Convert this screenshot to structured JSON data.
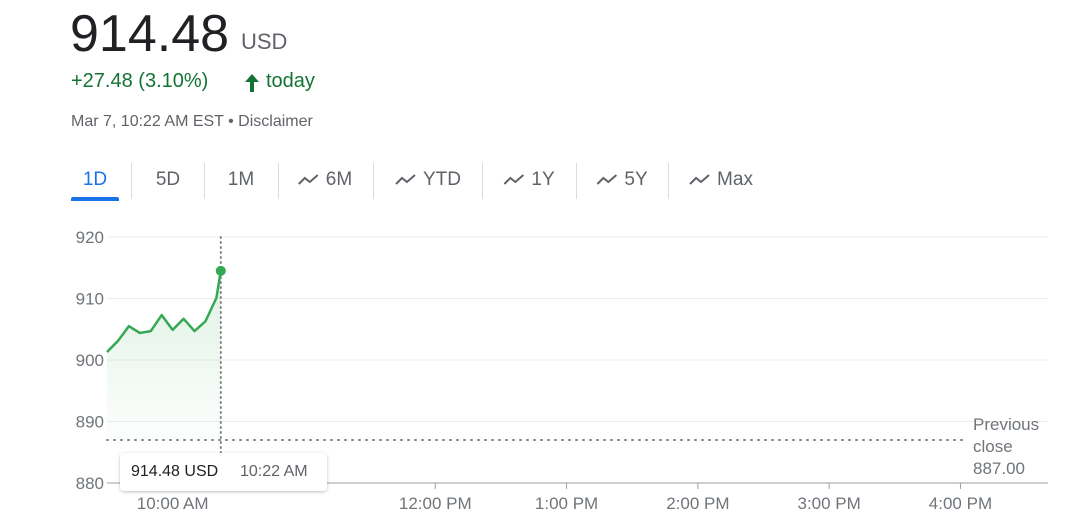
{
  "header": {
    "price": "914.48",
    "currency": "USD",
    "change": "+27.48 (3.10%)",
    "period": "today",
    "timestamp": "Mar 7, 10:22 AM EST",
    "disclaimer": "Disclaimer"
  },
  "tabs": [
    {
      "label": "1D",
      "selected": true,
      "icon": false
    },
    {
      "label": "5D",
      "selected": false,
      "icon": false
    },
    {
      "label": "1M",
      "selected": false,
      "icon": false
    },
    {
      "label": "6M",
      "selected": false,
      "icon": true
    },
    {
      "label": "YTD",
      "selected": false,
      "icon": true
    },
    {
      "label": "1Y",
      "selected": false,
      "icon": true
    },
    {
      "label": "5Y",
      "selected": false,
      "icon": true
    },
    {
      "label": "Max",
      "selected": false,
      "icon": true
    }
  ],
  "chart_data": {
    "type": "line",
    "color": "#34a853",
    "x": [
      570,
      575,
      580,
      585,
      590,
      595,
      600,
      605,
      610,
      615,
      620,
      622
    ],
    "values": [
      901.3,
      903.1,
      905.5,
      904.4,
      904.7,
      907.3,
      904.9,
      906.7,
      904.7,
      906.3,
      910.1,
      914.5
    ],
    "xlim": [
      570,
      1000
    ],
    "ylim": [
      880,
      920
    ],
    "xticks": [
      {
        "value": 600,
        "label": "10:00 AM"
      },
      {
        "value": 720,
        "label": "12:00 PM"
      },
      {
        "value": 780,
        "label": "1:00 PM"
      },
      {
        "value": 840,
        "label": "2:00 PM"
      },
      {
        "value": 900,
        "label": "3:00 PM"
      },
      {
        "value": 960,
        "label": "4:00 PM"
      }
    ],
    "yticks": [
      880,
      890,
      900,
      910,
      920
    ],
    "grid": true,
    "previous_close": {
      "label": "Previous close",
      "value": 887,
      "value_label": "887.00"
    },
    "tooltip": {
      "value": "914.48 USD",
      "time": "10:22 AM"
    }
  }
}
